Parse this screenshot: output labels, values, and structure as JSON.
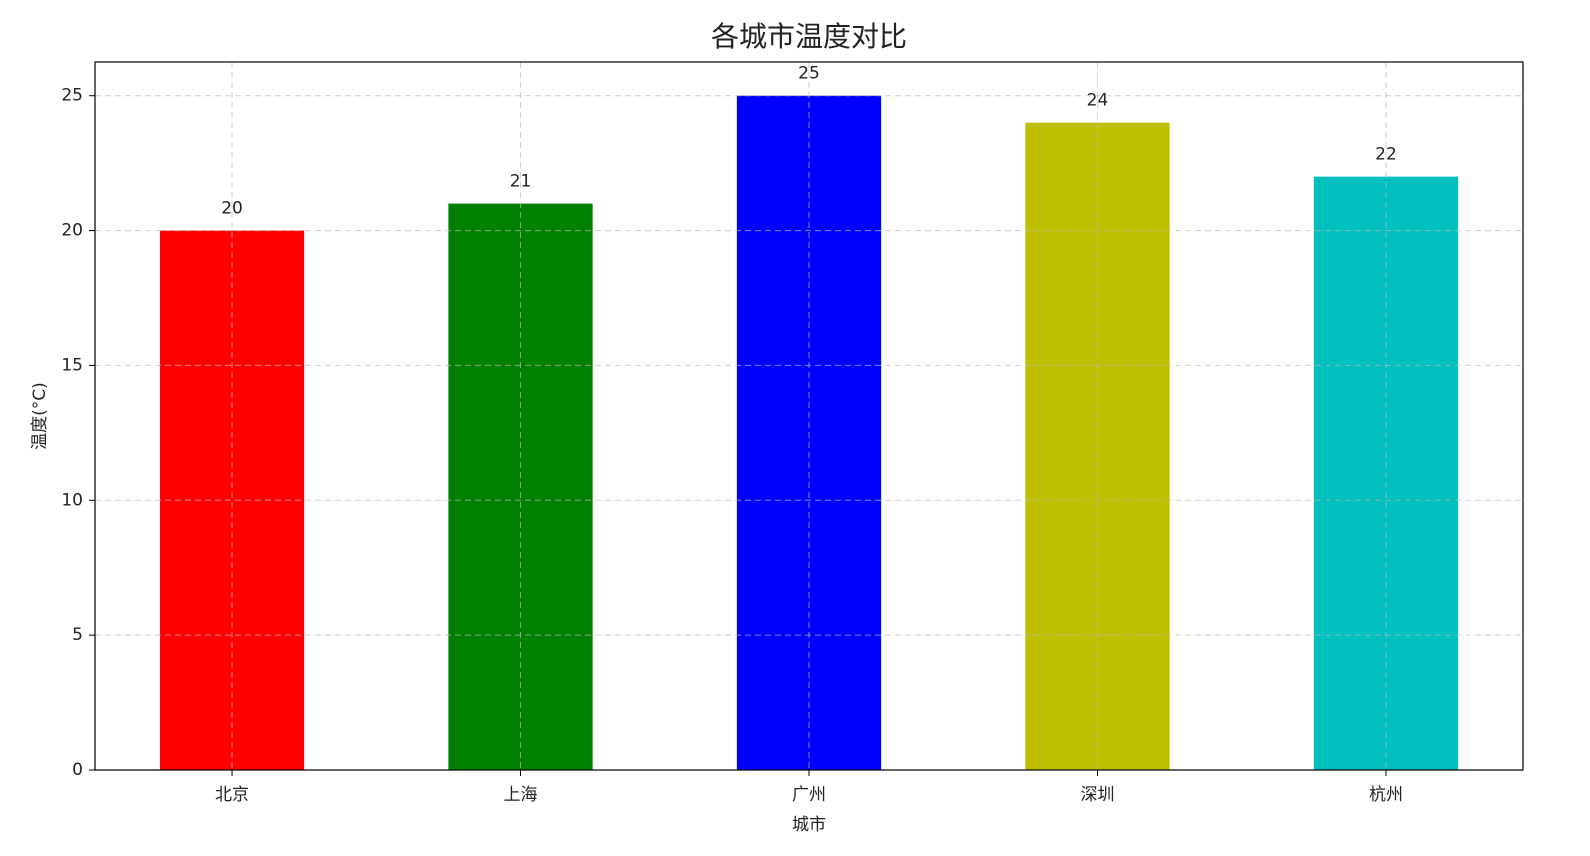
{
  "chart_data": {
    "type": "bar",
    "title": "各城市温度对比",
    "x_label": "城市",
    "y_label": "温度(°C)",
    "categories": [
      "北京",
      "上海",
      "广州",
      "深圳",
      "杭州"
    ],
    "values": [
      20,
      21,
      25,
      24,
      22
    ],
    "colors": [
      "#ff0000",
      "#008000",
      "#0000ff",
      "#bfbf00",
      "#00bfbf"
    ],
    "ylim": [
      0,
      26.25
    ],
    "yticks": [
      0,
      5,
      10,
      15,
      20,
      25
    ],
    "grid": true
  }
}
